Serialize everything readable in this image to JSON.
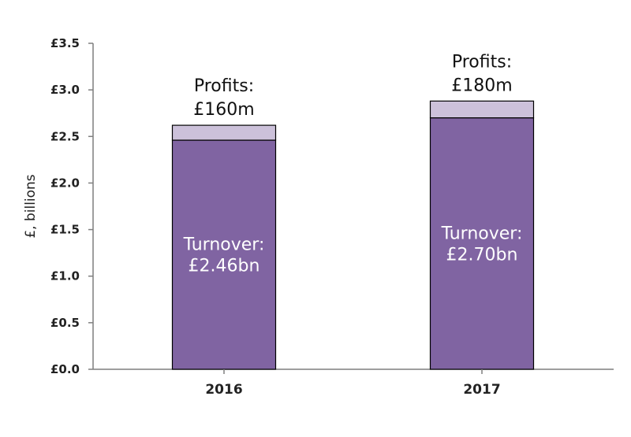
{
  "chart_data": {
    "type": "bar",
    "stacked": true,
    "title": "",
    "xlabel": "",
    "ylabel": "£, billions",
    "ylim": [
      0,
      3.5
    ],
    "yticks": [
      0.0,
      0.5,
      1.0,
      1.5,
      2.0,
      2.5,
      3.0,
      3.5
    ],
    "ytick_labels": [
      "£0.0",
      "£0.5",
      "£1.0",
      "£1.5",
      "£2.0",
      "£2.5",
      "£3.0",
      "£3.5"
    ],
    "categories": [
      "2016",
      "2017"
    ],
    "series": [
      {
        "name": "Turnover",
        "values": [
          2.46,
          2.7
        ],
        "color": "#8064a2",
        "label_prefix": "Turnover:",
        "labels": [
          "£2.46bn",
          "£2.70bn"
        ]
      },
      {
        "name": "Profits",
        "values": [
          0.16,
          0.18
        ],
        "color": "#ccc1da",
        "label_prefix": "Profits:",
        "labels": [
          "£160m",
          "£180m"
        ]
      }
    ],
    "grid": false,
    "legend": "none"
  }
}
